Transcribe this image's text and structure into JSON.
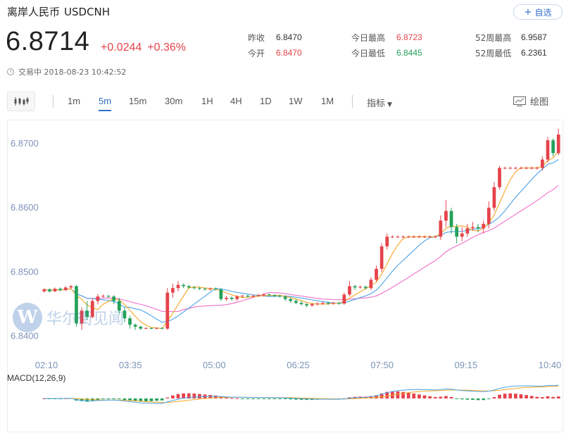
{
  "header": {
    "name": "离岸人民币",
    "code": "USDCNH",
    "follow_label": "自选",
    "price": "6.8714",
    "change_abs": "+0.0244",
    "change_pct": "+0.36%",
    "status": "交易中 2018-08-23 10:42:52"
  },
  "stats": {
    "col1": [
      {
        "label": "昨收",
        "value": "6.8470",
        "color": "normal"
      },
      {
        "label": "今开",
        "value": "6.8470",
        "color": "red"
      }
    ],
    "col2": [
      {
        "label": "今日最高",
        "value": "6.8723",
        "color": "red"
      },
      {
        "label": "今日最低",
        "value": "6.8445",
        "color": "green"
      }
    ],
    "col3": [
      {
        "label": "52周最高",
        "value": "6.9587",
        "color": "normal"
      },
      {
        "label": "52周最低",
        "value": "6.2361",
        "color": "normal"
      }
    ]
  },
  "toolbar": {
    "timeframes": [
      "1m",
      "5m",
      "15m",
      "30m",
      "1H",
      "4H",
      "1D",
      "1W",
      "1M"
    ],
    "active": "5m",
    "indicator_label": "指标",
    "draw_label": "绘图"
  },
  "watermark": {
    "letter": "W",
    "text": "华尔街见闻"
  },
  "chart_data": {
    "type": "candlestick",
    "ylim": [
      6.838,
      6.8725
    ],
    "y_ticks": [
      "6.8400",
      "6.8500",
      "6.8600",
      "6.8700"
    ],
    "x_ticks": [
      "02:10",
      "03:35",
      "05:00",
      "06:25",
      "07:50",
      "09:15",
      "10:40"
    ],
    "macd_label": "MACD(12,26,9)",
    "colors": {
      "up": "#e5434b",
      "down": "#24a15a",
      "ma_short": "#f5a623",
      "ma_mid": "#4aa3e8",
      "ma_long": "#f06fc8"
    },
    "candles": [
      [
        6.847,
        6.8473,
        6.8468,
        6.8475
      ],
      [
        6.8473,
        6.847,
        6.8468,
        6.8475
      ],
      [
        6.847,
        6.8474,
        6.8469,
        6.8476
      ],
      [
        6.8474,
        6.8472,
        6.847,
        6.8476
      ],
      [
        6.8472,
        6.8476,
        6.847,
        6.8478
      ],
      [
        6.8476,
        6.8478,
        6.8474,
        6.848
      ],
      [
        6.8478,
        6.842,
        6.8415,
        6.848
      ],
      [
        6.842,
        6.844,
        6.841,
        6.8445
      ],
      [
        6.844,
        6.843,
        6.8425,
        6.8455
      ],
      [
        6.843,
        6.8455,
        6.8428,
        6.846
      ],
      [
        6.8455,
        6.8462,
        6.845,
        6.8466
      ],
      [
        6.8462,
        6.8463,
        6.846,
        6.8465
      ],
      [
        6.8463,
        6.8462,
        6.846,
        6.8464
      ],
      [
        6.8462,
        6.8455,
        6.845,
        6.8464
      ],
      [
        6.8455,
        6.844,
        6.8435,
        6.846
      ],
      [
        6.844,
        6.8428,
        6.8422,
        6.8445
      ],
      [
        6.8428,
        6.8418,
        6.8412,
        6.8432
      ],
      [
        6.8418,
        6.8415,
        6.841,
        6.842
      ],
      [
        6.8415,
        6.8412,
        6.841,
        6.8416
      ],
      [
        6.8412,
        6.8413,
        6.8411,
        6.8414
      ],
      [
        6.8413,
        6.8412,
        6.8411,
        6.8414
      ],
      [
        6.8412,
        6.8413,
        6.8411,
        6.8414
      ],
      [
        6.8413,
        6.8412,
        6.8411,
        6.8414
      ],
      [
        6.8412,
        6.8468,
        6.841,
        6.8475
      ],
      [
        6.8468,
        6.8475,
        6.846,
        6.8482
      ],
      [
        6.8475,
        6.848,
        6.847,
        6.8486
      ],
      [
        6.848,
        6.8478,
        6.8475,
        6.8482
      ],
      [
        6.8478,
        6.8476,
        6.8474,
        6.848
      ],
      [
        6.8476,
        6.8475,
        6.8473,
        6.8478
      ],
      [
        6.8475,
        6.8474,
        6.8472,
        6.8477
      ],
      [
        6.8474,
        6.8473,
        6.8471,
        6.8476
      ],
      [
        6.8473,
        6.8474,
        6.8471,
        6.8476
      ],
      [
        6.8474,
        6.8473,
        6.8471,
        6.8476
      ],
      [
        6.8473,
        6.8458,
        6.8455,
        6.8475
      ],
      [
        6.8458,
        6.846,
        6.8455,
        6.8463
      ],
      [
        6.846,
        6.8458,
        6.8456,
        6.8462
      ],
      [
        6.8458,
        6.8462,
        6.8455,
        6.8464
      ],
      [
        6.8462,
        6.8463,
        6.846,
        6.8465
      ],
      [
        6.8463,
        6.8462,
        6.846,
        6.8465
      ],
      [
        6.8462,
        6.8463,
        6.846,
        6.8465
      ],
      [
        6.8463,
        6.8464,
        6.8461,
        6.8466
      ],
      [
        6.8464,
        6.8465,
        6.8462,
        6.8467
      ],
      [
        6.8465,
        6.8464,
        6.8462,
        6.8467
      ],
      [
        6.8464,
        6.8463,
        6.8461,
        6.8466
      ],
      [
        6.8463,
        6.8462,
        6.846,
        6.8465
      ],
      [
        6.8462,
        6.8458,
        6.8455,
        6.8464
      ],
      [
        6.8458,
        6.8455,
        6.8452,
        6.846
      ],
      [
        6.8455,
        6.8452,
        6.845,
        6.8458
      ],
      [
        6.8452,
        6.845,
        6.8448,
        6.8455
      ],
      [
        6.845,
        6.8448,
        6.8445,
        6.8452
      ],
      [
        6.8448,
        6.845,
        6.8446,
        6.8452
      ],
      [
        6.845,
        6.8451,
        6.8448,
        6.8453
      ],
      [
        6.8451,
        6.8452,
        6.8449,
        6.8454
      ],
      [
        6.8452,
        6.8451,
        6.8449,
        6.8454
      ],
      [
        6.8451,
        6.8452,
        6.8449,
        6.8454
      ],
      [
        6.8452,
        6.8451,
        6.8449,
        6.8454
      ],
      [
        6.8451,
        6.8465,
        6.8449,
        6.8468
      ],
      [
        6.8465,
        6.8478,
        6.8462,
        6.8486
      ],
      [
        6.8478,
        6.8476,
        6.8472,
        6.848
      ],
      [
        6.8476,
        6.8477,
        6.8474,
        6.8479
      ],
      [
        6.8477,
        6.8475,
        6.8473,
        6.8479
      ],
      [
        6.8475,
        6.8488,
        6.8472,
        6.8492
      ],
      [
        6.8488,
        6.8505,
        6.8485,
        6.851
      ],
      [
        6.8505,
        6.854,
        6.85,
        6.8545
      ],
      [
        6.854,
        6.8555,
        6.8535,
        6.856
      ],
      [
        6.8555,
        6.8555,
        6.8553,
        6.8557
      ],
      [
        6.8555,
        6.8555,
        6.8553,
        6.8557
      ],
      [
        6.8555,
        6.8555,
        6.8553,
        6.8557
      ],
      [
        6.8555,
        6.8555,
        6.8553,
        6.8557
      ],
      [
        6.8555,
        6.8555,
        6.8553,
        6.8557
      ],
      [
        6.8555,
        6.8555,
        6.8553,
        6.8557
      ],
      [
        6.8555,
        6.8555,
        6.8553,
        6.8557
      ],
      [
        6.8555,
        6.8555,
        6.8553,
        6.8557
      ],
      [
        6.8555,
        6.8555,
        6.8553,
        6.8557
      ],
      [
        6.8555,
        6.858,
        6.855,
        6.8588
      ],
      [
        6.858,
        6.8595,
        6.857,
        6.8612
      ],
      [
        6.8595,
        6.857,
        6.856,
        6.86
      ],
      [
        6.857,
        6.8555,
        6.8545,
        6.8575
      ],
      [
        6.8555,
        6.856,
        6.8548,
        6.857
      ],
      [
        6.856,
        6.8568,
        6.8555,
        6.8575
      ],
      [
        6.8568,
        6.857,
        6.8565,
        6.8578
      ],
      [
        6.857,
        6.8568,
        6.8562,
        6.8575
      ],
      [
        6.8568,
        6.8575,
        6.856,
        6.858
      ],
      [
        6.8575,
        6.86,
        6.8568,
        6.861
      ],
      [
        6.86,
        6.8632,
        6.8595,
        6.864
      ],
      [
        6.8632,
        6.8662,
        6.8628,
        6.8665
      ],
      [
        6.8662,
        6.8662,
        6.866,
        6.8664
      ],
      [
        6.8662,
        6.8662,
        6.866,
        6.8664
      ],
      [
        6.8662,
        6.8662,
        6.866,
        6.8664
      ],
      [
        6.8662,
        6.8662,
        6.866,
        6.8664
      ],
      [
        6.8662,
        6.8662,
        6.866,
        6.8664
      ],
      [
        6.8662,
        6.8662,
        6.866,
        6.8664
      ],
      [
        6.8662,
        6.8662,
        6.866,
        6.8664
      ],
      [
        6.8662,
        6.8675,
        6.8658,
        6.868
      ],
      [
        6.8675,
        6.8705,
        6.867,
        6.871
      ],
      [
        6.8705,
        6.8685,
        6.868,
        6.8708
      ],
      [
        6.8685,
        6.8714,
        6.8682,
        6.8723
      ]
    ]
  }
}
